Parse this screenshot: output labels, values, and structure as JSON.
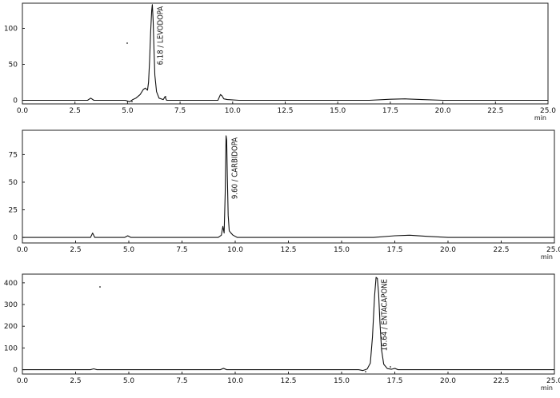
{
  "chart_data": [
    {
      "type": "line",
      "xlabel": "min",
      "xlim": [
        0,
        25
      ],
      "ylim": [
        -5,
        135
      ],
      "x_ticks": [
        "0.0",
        "2.5",
        "5.0",
        "7.5",
        "10.0",
        "12.5",
        "15.0",
        "17.5",
        "20.0",
        "22.5",
        "25.0"
      ],
      "y_ticks": [
        "0",
        "50",
        "100"
      ],
      "annotations": [
        {
          "text": "6.18 / LEVODOPA",
          "x": 6.18
        }
      ],
      "series": [
        {
          "x": [
            0,
            3.1,
            3.25,
            3.4,
            4.9,
            5.1,
            5.25,
            5.4,
            5.6,
            5.75,
            5.85,
            5.95,
            6.0,
            6.05,
            6.1,
            6.15,
            6.18,
            6.22,
            6.26,
            6.3,
            6.38,
            6.5,
            6.7,
            6.78,
            6.86,
            7.1,
            9.3,
            9.42,
            9.5,
            9.58,
            9.75,
            10.3,
            12,
            16.5,
            17.5,
            18.2,
            19,
            20,
            25
          ],
          "y": [
            0,
            0,
            3,
            0,
            0,
            -2,
            1,
            3,
            8,
            15,
            17,
            14,
            25,
            55,
            95,
            125,
            133,
            110,
            70,
            35,
            12,
            3,
            1,
            5,
            0,
            0,
            0,
            8,
            6,
            2,
            1,
            0,
            0,
            0,
            1.5,
            2,
            1,
            0,
            0
          ]
        }
      ]
    },
    {
      "type": "line",
      "xlabel": "min",
      "xlim": [
        0,
        25
      ],
      "ylim": [
        -5,
        97
      ],
      "x_ticks": [
        "0.0",
        "2.5",
        "5.0",
        "7.5",
        "10.0",
        "12.5",
        "15.0",
        "17.5",
        "20.0",
        "22.5",
        "25.0"
      ],
      "y_ticks": [
        "0",
        "25",
        "50",
        "75"
      ],
      "annotations": [
        {
          "text": "9.60 / CARBIDOPA",
          "x": 9.6
        }
      ],
      "series": [
        {
          "x": [
            0,
            2.8,
            3.2,
            3.3,
            3.4,
            4.8,
            4.95,
            5.1,
            9.2,
            9.35,
            9.42,
            9.48,
            9.53,
            9.57,
            9.6,
            9.63,
            9.67,
            9.72,
            9.8,
            9.9,
            10.1,
            10.4,
            16.5,
            17.5,
            18.2,
            19,
            20,
            25
          ],
          "y": [
            0,
            0,
            0,
            4,
            0,
            0,
            1.5,
            0,
            0,
            2,
            10,
            4,
            40,
            92,
            88,
            55,
            20,
            6,
            4,
            2,
            0,
            0,
            0,
            1.5,
            2,
            1,
            0,
            0
          ]
        }
      ]
    },
    {
      "type": "line",
      "xlabel": "min",
      "xlim": [
        0,
        25
      ],
      "ylim": [
        -20,
        440
      ],
      "x_ticks": [
        "0.0",
        "2.5",
        "5.0",
        "7.5",
        "10.0",
        "12.5",
        "15.0",
        "17.5",
        "20.0",
        "22.5",
        "25.0"
      ],
      "y_ticks": [
        "0",
        "100",
        "200",
        "300",
        "400"
      ],
      "annotations": [
        {
          "text": "16.64 / ENTACAPONE",
          "x": 16.64
        }
      ],
      "series": [
        {
          "x": [
            0,
            3.2,
            3.35,
            3.5,
            9.3,
            9.45,
            9.6,
            15.8,
            16.0,
            16.2,
            16.35,
            16.45,
            16.55,
            16.62,
            16.68,
            16.74,
            16.8,
            16.88,
            16.98,
            17.15,
            17.35,
            17.5,
            17.65,
            25
          ],
          "y": [
            0,
            0,
            4,
            0,
            0,
            6,
            0,
            0,
            -4,
            3,
            30,
            150,
            340,
            425,
            420,
            350,
            220,
            90,
            25,
            5,
            2,
            6,
            0,
            0
          ]
        }
      ]
    }
  ]
}
